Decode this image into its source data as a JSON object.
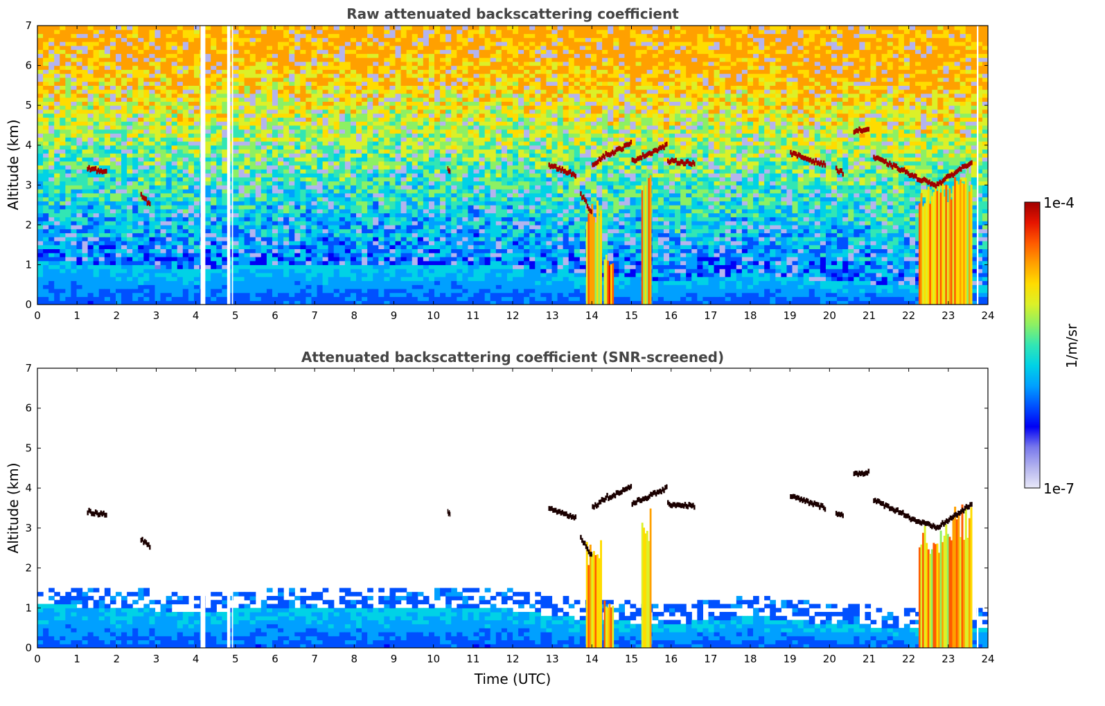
{
  "chart_data": [
    {
      "type": "heatmap",
      "title": "Raw attenuated backscattering coefficient",
      "xlabel": "",
      "ylabel": "Altitude (km)",
      "xlim": [
        0,
        24
      ],
      "ylim": [
        0,
        7
      ],
      "xticks": [
        "0",
        "1",
        "2",
        "3",
        "4",
        "5",
        "6",
        "7",
        "8",
        "9",
        "10",
        "11",
        "12",
        "13",
        "14",
        "15",
        "16",
        "17",
        "18",
        "19",
        "20",
        "21",
        "22",
        "23",
        "24"
      ],
      "yticks": [
        "0",
        "1",
        "2",
        "3",
        "4",
        "5",
        "6",
        "7"
      ],
      "grid": false,
      "noise": "high",
      "data_gaps_utc": [
        [
          4.12,
          4.24
        ],
        [
          4.79,
          4.87
        ],
        [
          4.91,
          4.94
        ],
        [
          23.72,
          23.76
        ]
      ],
      "boundary_layer_top_km": [
        [
          0,
          1.1
        ],
        [
          2,
          1.0
        ],
        [
          4,
          0.9
        ],
        [
          6,
          1.0
        ],
        [
          8,
          0.95
        ],
        [
          10,
          1.0
        ],
        [
          12,
          0.95
        ],
        [
          13,
          0.8
        ],
        [
          14,
          0.7
        ],
        [
          16,
          0.6
        ],
        [
          18,
          0.8
        ],
        [
          20,
          0.6
        ],
        [
          22,
          0.5
        ],
        [
          24,
          0.5
        ]
      ],
      "clouds": [
        {
          "t0": 1.25,
          "t1": 1.75,
          "alt_km": [
            3.42,
            3.32
          ]
        },
        {
          "t0": 2.6,
          "t1": 2.85,
          "alt_km": [
            2.75,
            2.5
          ]
        },
        {
          "t0": 10.35,
          "t1": 10.42,
          "alt_km": [
            3.4,
            3.35
          ]
        },
        {
          "t0": 12.9,
          "t1": 13.6,
          "alt_km": [
            3.5,
            3.25
          ]
        },
        {
          "t0": 13.7,
          "t1": 14.0,
          "alt_km": [
            2.8,
            2.3
          ]
        },
        {
          "t0": 14.0,
          "t1": 14.4,
          "alt_km": [
            3.5,
            3.8
          ]
        },
        {
          "t0": 14.4,
          "t1": 15.0,
          "alt_km": [
            3.75,
            4.05
          ]
        },
        {
          "t0": 15.0,
          "t1": 15.9,
          "alt_km": [
            3.6,
            4.0
          ]
        },
        {
          "t0": 15.9,
          "t1": 16.6,
          "alt_km": [
            3.6,
            3.55
          ]
        },
        {
          "t0": 19.0,
          "t1": 19.9,
          "alt_km": [
            3.8,
            3.5
          ]
        },
        {
          "t0": 20.15,
          "t1": 20.35,
          "alt_km": [
            3.4,
            3.3
          ]
        },
        {
          "t0": 20.6,
          "t1": 21.0,
          "alt_km": [
            4.35,
            4.4
          ]
        },
        {
          "t0": 21.1,
          "t1": 22.0,
          "alt_km": [
            3.7,
            3.3
          ]
        },
        {
          "t0": 22.0,
          "t1": 22.7,
          "alt_km": [
            3.25,
            3.0
          ]
        },
        {
          "t0": 22.7,
          "t1": 23.6,
          "alt_km": [
            3.0,
            3.6
          ]
        }
      ],
      "precip_streaks": [
        {
          "t0": 13.85,
          "t1": 14.25,
          "top_km": 2.7
        },
        {
          "t0": 14.3,
          "t1": 14.55,
          "top_km": 1.3
        },
        {
          "t0": 15.25,
          "t1": 15.5,
          "top_km": 3.5
        },
        {
          "t0": 22.25,
          "t1": 23.1,
          "top_km": 3.1
        },
        {
          "t0": 23.1,
          "t1": 23.6,
          "top_km": 3.6
        }
      ]
    },
    {
      "type": "heatmap",
      "title": "Attenuated backscattering coefficient (SNR-screened)",
      "xlabel": "Time (UTC)",
      "ylabel": "Altitude (km)",
      "xlim": [
        0,
        24
      ],
      "ylim": [
        0,
        7
      ],
      "xticks": [
        "0",
        "1",
        "2",
        "3",
        "4",
        "5",
        "6",
        "7",
        "8",
        "9",
        "10",
        "11",
        "12",
        "13",
        "14",
        "15",
        "16",
        "17",
        "18",
        "19",
        "20",
        "21",
        "22",
        "23",
        "24"
      ],
      "yticks": [
        "0",
        "1",
        "2",
        "3",
        "4",
        "5",
        "6",
        "7"
      ],
      "grid": false,
      "noise": "screened"
    }
  ],
  "colorbar": {
    "label": "1/m/sr",
    "max_label": "1e-4",
    "min_label": "1e-7",
    "scale": "log",
    "range": [
      1e-07,
      0.0001
    ],
    "colormap": [
      "#e8e8f8",
      "#b4b4ee",
      "#7878ec",
      "#0000f5",
      "#0050ff",
      "#00a0ff",
      "#00d2e6",
      "#32e6b4",
      "#8cf064",
      "#dcf028",
      "#ffdc00",
      "#ffa000",
      "#ff5a00",
      "#e61400",
      "#a00000"
    ]
  }
}
